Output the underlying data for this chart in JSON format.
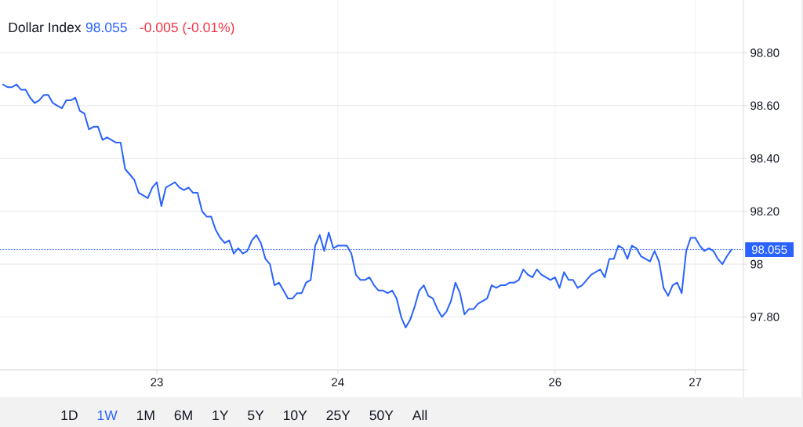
{
  "chart_data": {
    "type": "line",
    "title": "Dollar Index",
    "annotations": [
      "98.055",
      "-0.005 (-0.01%)",
      "1D",
      "1W",
      "1M",
      "6M",
      "1Y",
      "5Y",
      "10Y",
      "25Y",
      "50Y",
      "All"
    ],
    "categories": [
      null,
      null,
      null,
      null,
      null,
      null,
      null,
      null,
      null,
      null,
      null,
      null,
      null,
      null,
      null,
      null,
      null,
      null,
      null,
      null,
      null,
      null,
      null,
      null,
      null,
      null,
      null,
      null,
      null,
      null,
      null,
      null,
      null,
      null,
      "23",
      null,
      null,
      null,
      null,
      null,
      null,
      null,
      null,
      null,
      null,
      null,
      null,
      null,
      null,
      null,
      null,
      null,
      null,
      null,
      null,
      null,
      null,
      null,
      null,
      null,
      null,
      null,
      null,
      null,
      null,
      null,
      null,
      null,
      null,
      null,
      null,
      null,
      null,
      null,
      "24",
      null,
      null,
      null,
      null,
      null,
      null,
      null,
      null,
      null,
      null,
      null,
      null,
      null,
      null,
      null,
      null,
      null,
      null,
      null,
      null,
      null,
      null,
      null,
      null,
      null,
      null,
      null,
      null,
      null,
      null,
      null,
      null,
      null,
      null,
      null,
      null,
      null,
      null,
      null,
      null,
      null,
      null,
      null,
      null,
      null,
      null,
      null,
      "26",
      null,
      null,
      null,
      null,
      null,
      null,
      null,
      null,
      null,
      null,
      null,
      null,
      null,
      null,
      null,
      null,
      null,
      null,
      null,
      null,
      null,
      null,
      null,
      null,
      null,
      null,
      null,
      null,
      null,
      null,
      "27",
      null,
      null,
      null,
      null,
      null,
      null,
      null,
      null
    ],
    "series": [
      {
        "color": "#2962ff",
        "values": [
          98.68,
          98.67,
          98.67,
          98.68,
          98.66,
          98.66,
          98.63,
          98.61,
          98.62,
          98.64,
          98.64,
          98.61,
          98.6,
          98.59,
          98.62,
          98.62,
          98.63,
          98.58,
          98.57,
          98.51,
          98.52,
          98.52,
          98.47,
          98.48,
          98.47,
          98.46,
          98.46,
          98.36,
          98.34,
          98.32,
          98.27,
          98.26,
          98.25,
          98.29,
          98.31,
          98.22,
          98.29,
          98.3,
          98.31,
          98.29,
          98.28,
          98.29,
          98.27,
          98.27,
          98.2,
          98.18,
          98.18,
          98.13,
          98.1,
          98.08,
          98.09,
          98.04,
          98.06,
          98.04,
          98.05,
          98.09,
          98.11,
          98.08,
          98.02,
          98.0,
          97.92,
          97.93,
          97.9,
          97.87,
          97.87,
          97.89,
          97.89,
          97.93,
          97.94,
          98.07,
          98.11,
          98.05,
          98.12,
          98.06,
          98.07,
          98.07,
          98.07,
          98.04,
          97.96,
          97.94,
          97.94,
          97.95,
          97.92,
          97.9,
          97.9,
          97.89,
          97.9,
          97.87,
          97.8,
          97.76,
          97.79,
          97.84,
          97.9,
          97.92,
          97.88,
          97.87,
          97.83,
          97.8,
          97.82,
          97.86,
          97.93,
          97.89,
          97.81,
          97.83,
          97.83,
          97.85,
          97.86,
          97.87,
          97.92,
          97.91,
          97.92,
          97.92,
          97.93,
          97.93,
          97.94,
          97.98,
          97.96,
          97.95,
          97.98,
          97.96,
          97.95,
          97.94,
          97.95,
          97.91,
          97.97,
          97.94,
          97.94,
          97.91,
          97.92,
          97.94,
          97.96,
          97.97,
          97.98,
          97.95,
          98.02,
          98.02,
          98.07,
          98.06,
          98.02,
          98.07,
          98.06,
          98.03,
          98.02,
          98.01,
          98.05,
          98.01,
          97.91,
          97.88,
          97.92,
          97.93,
          97.89,
          98.05,
          98.1,
          98.1,
          98.07,
          98.05,
          98.06,
          98.05,
          98.02,
          98.0,
          98.03,
          98.055
        ]
      }
    ],
    "ylim": [
      97.6,
      99.0
    ],
    "yticks": [
      {
        "value": 97.6,
        "label": null
      },
      {
        "value": 97.8,
        "label": "97.80"
      },
      98,
      {
        "value": 98.2,
        "label": "98.20"
      },
      {
        "value": 98.4,
        "label": "98.40"
      },
      {
        "value": 98.6,
        "label": "98.60"
      },
      {
        "value": 98.8,
        "label": "98.80"
      }
    ],
    "grid": true,
    "ref_lines": [
      {
        "axis": "y",
        "value": 98.055,
        "label": "98.055",
        "color": "#2962ff",
        "line_style": "dotted"
      }
    ]
  }
}
